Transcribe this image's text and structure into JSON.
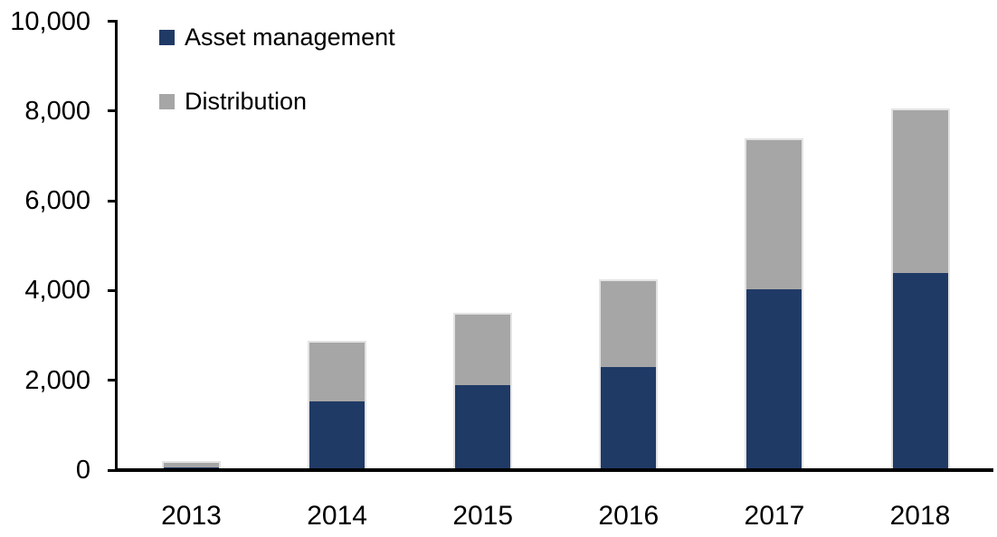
{
  "chart_data": {
    "type": "bar",
    "stacked": true,
    "title": "",
    "xlabel": "",
    "ylabel": "",
    "categories": [
      "2013",
      "2014",
      "2015",
      "2016",
      "2017",
      "2018"
    ],
    "series": [
      {
        "name": "Asset management",
        "color": "#203a66",
        "values": [
          100,
          1580,
          1930,
          2330,
          4070,
          4430
        ]
      },
      {
        "name": "Distribution",
        "color": "#a6a6a6",
        "values": [
          100,
          1300,
          1570,
          1920,
          3330,
          3620
        ]
      }
    ],
    "totals": [
      200,
      2880,
      3500,
      4250,
      7400,
      8050
    ],
    "ylim": [
      0,
      10000
    ],
    "yticks": {
      "values": [
        0,
        2000,
        4000,
        6000,
        8000,
        10000
      ],
      "labels": [
        "0",
        "2,000",
        "4,000",
        "6,000",
        "8,000",
        "10,000"
      ]
    },
    "grid": false,
    "legend_position": "top-left-inside",
    "colors": {
      "axis": "#000000",
      "text": "#000000",
      "bar_border": "#e3e3e3",
      "background": "#ffffff"
    }
  }
}
